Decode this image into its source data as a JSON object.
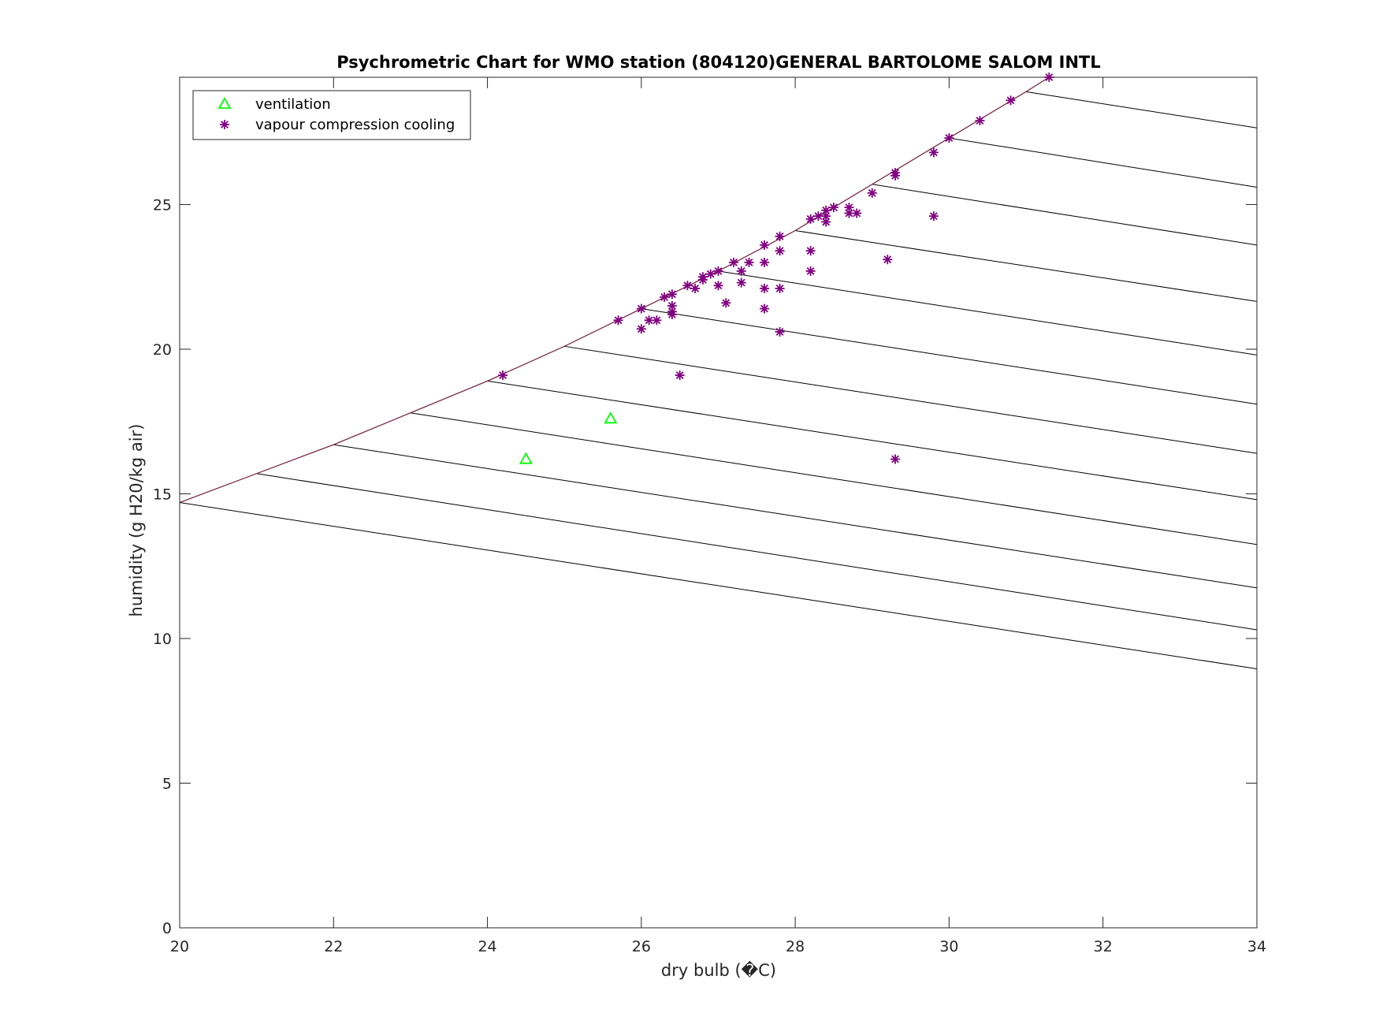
{
  "chart_data": {
    "type": "scatter",
    "title": "Psychrometric Chart for WMO station (804120)GENERAL BARTOLOME SALOM INTL",
    "xlabel": "dry bulb (�C)",
    "ylabel": "humidity (g H20/kg air)",
    "xlim": [
      20,
      34
    ],
    "ylim": [
      0,
      29.4
    ],
    "xticks": [
      20,
      22,
      24,
      26,
      28,
      30,
      32,
      34
    ],
    "yticks": [
      0,
      5,
      10,
      15,
      20,
      25
    ],
    "grid": false,
    "legend_position": "top-left",
    "saturation_curve": {
      "color": "#7a2a4a",
      "x": [
        20,
        21,
        22,
        23,
        24,
        25,
        26,
        27,
        28,
        29,
        30,
        31,
        31.3
      ],
      "y": [
        14.7,
        15.7,
        16.7,
        17.8,
        18.9,
        20.1,
        21.4,
        22.7,
        24.1,
        25.7,
        27.3,
        28.9,
        29.4
      ]
    },
    "wet_bulb_lines": [
      {
        "x": [
          20,
          34
        ],
        "y": [
          14.7,
          8.95
        ]
      },
      {
        "x": [
          21,
          34
        ],
        "y": [
          15.7,
          10.3
        ]
      },
      {
        "x": [
          22,
          34
        ],
        "y": [
          16.7,
          11.75
        ]
      },
      {
        "x": [
          23,
          34
        ],
        "y": [
          17.8,
          13.25
        ]
      },
      {
        "x": [
          24,
          34
        ],
        "y": [
          18.9,
          14.8
        ]
      },
      {
        "x": [
          25,
          34
        ],
        "y": [
          20.1,
          16.4
        ]
      },
      {
        "x": [
          26,
          34
        ],
        "y": [
          21.4,
          18.1
        ]
      },
      {
        "x": [
          27,
          34
        ],
        "y": [
          22.7,
          19.8
        ]
      },
      {
        "x": [
          28,
          34
        ],
        "y": [
          24.1,
          21.65
        ]
      },
      {
        "x": [
          29,
          34
        ],
        "y": [
          25.7,
          23.6
        ]
      },
      {
        "x": [
          30,
          34
        ],
        "y": [
          27.3,
          25.6
        ]
      },
      {
        "x": [
          31,
          34
        ],
        "y": [
          28.9,
          27.65
        ]
      }
    ],
    "series": [
      {
        "name": "ventilation",
        "marker": "triangle",
        "color": "#00ff00",
        "points": [
          [
            24.5,
            16.2
          ],
          [
            25.6,
            17.6
          ]
        ]
      },
      {
        "name": "vapour compression cooling",
        "marker": "asterisk",
        "color": "#800080",
        "points": [
          [
            24.2,
            19.1
          ],
          [
            25.7,
            21.0
          ],
          [
            26.0,
            21.4
          ],
          [
            26.0,
            20.7
          ],
          [
            26.1,
            21.0
          ],
          [
            26.2,
            21.0
          ],
          [
            26.3,
            21.8
          ],
          [
            26.4,
            21.9
          ],
          [
            26.4,
            21.5
          ],
          [
            26.4,
            21.3
          ],
          [
            26.4,
            21.2
          ],
          [
            26.5,
            19.1
          ],
          [
            26.6,
            22.2
          ],
          [
            26.7,
            22.1
          ],
          [
            26.8,
            22.5
          ],
          [
            26.8,
            22.4
          ],
          [
            26.9,
            22.6
          ],
          [
            27.0,
            22.7
          ],
          [
            27.0,
            22.2
          ],
          [
            27.1,
            21.6
          ],
          [
            27.2,
            23.0
          ],
          [
            27.3,
            22.7
          ],
          [
            27.3,
            22.3
          ],
          [
            27.4,
            23.0
          ],
          [
            27.6,
            23.6
          ],
          [
            27.6,
            23.0
          ],
          [
            27.6,
            22.1
          ],
          [
            27.6,
            21.4
          ],
          [
            27.8,
            23.9
          ],
          [
            27.8,
            23.4
          ],
          [
            27.8,
            22.1
          ],
          [
            27.8,
            20.6
          ],
          [
            28.2,
            24.5
          ],
          [
            28.2,
            23.4
          ],
          [
            28.2,
            22.7
          ],
          [
            28.3,
            24.6
          ],
          [
            28.4,
            24.8
          ],
          [
            28.4,
            24.6
          ],
          [
            28.4,
            24.4
          ],
          [
            28.5,
            24.9
          ],
          [
            28.7,
            24.9
          ],
          [
            28.7,
            24.7
          ],
          [
            28.8,
            24.7
          ],
          [
            29.0,
            25.4
          ],
          [
            29.2,
            23.1
          ],
          [
            29.3,
            26.1
          ],
          [
            29.3,
            26.0
          ],
          [
            29.3,
            16.2
          ],
          [
            29.8,
            26.8
          ],
          [
            29.8,
            24.6
          ],
          [
            30.0,
            27.3
          ],
          [
            30.4,
            27.9
          ],
          [
            30.8,
            28.6
          ],
          [
            31.3,
            29.4
          ]
        ]
      }
    ]
  }
}
